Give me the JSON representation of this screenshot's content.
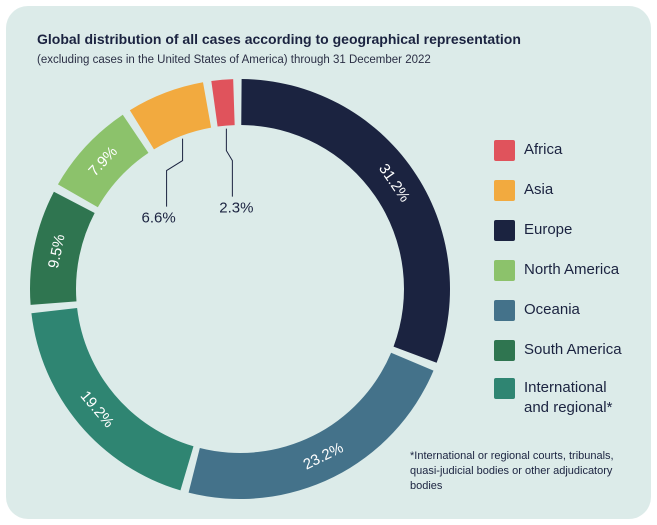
{
  "title": "Global distribution of all cases according to geographical representation",
  "subtitle": "(excluding cases in the United States of America) through 31 December 2022",
  "footnote": "*International or regional courts, tribunals, quasi-judicial bodies  or other adjudicatory bodies",
  "chart_data": {
    "type": "pie",
    "variant": "donut",
    "unit": "%",
    "categories": [
      "Africa",
      "Asia",
      "Europe",
      "North America",
      "Oceania",
      "South America",
      "International and regional*"
    ],
    "values": [
      2.3,
      6.6,
      31.2,
      7.9,
      23.2,
      9.5,
      19.2
    ],
    "labels": [
      "2.3%",
      "6.6%",
      "31.2%",
      "7.9%",
      "23.2%",
      "9.5%",
      "19.2%"
    ],
    "slice_order": [
      "Africa",
      "Europe",
      "Oceania",
      "International and regional*",
      "South America",
      "North America",
      "Asia"
    ],
    "colors": {
      "Africa": "#e0535c",
      "Asia": "#f2aa3f",
      "Europe": "#1b2340",
      "North America": "#8cc26b",
      "Oceania": "#44728a",
      "South America": "#2f7550",
      "International and regional*": "#2f8572"
    },
    "label_text_colors": {
      "inside": "#ffffff",
      "outside": "#1b2340"
    },
    "outside_labels": [
      "Africa",
      "Asia"
    ],
    "legend_placement": "right"
  },
  "legend": [
    {
      "label": "Africa",
      "color": "#e0535c"
    },
    {
      "label": "Asia",
      "color": "#f2aa3f"
    },
    {
      "label": "Europe",
      "color": "#1b2340"
    },
    {
      "label": "North America",
      "color": "#8cc26b"
    },
    {
      "label": "Oceania",
      "color": "#44728a"
    },
    {
      "label": "South America",
      "color": "#2f7550"
    },
    {
      "label": "International and regional*",
      "color": "#2f8572"
    }
  ],
  "background_color": "#dcebe9"
}
